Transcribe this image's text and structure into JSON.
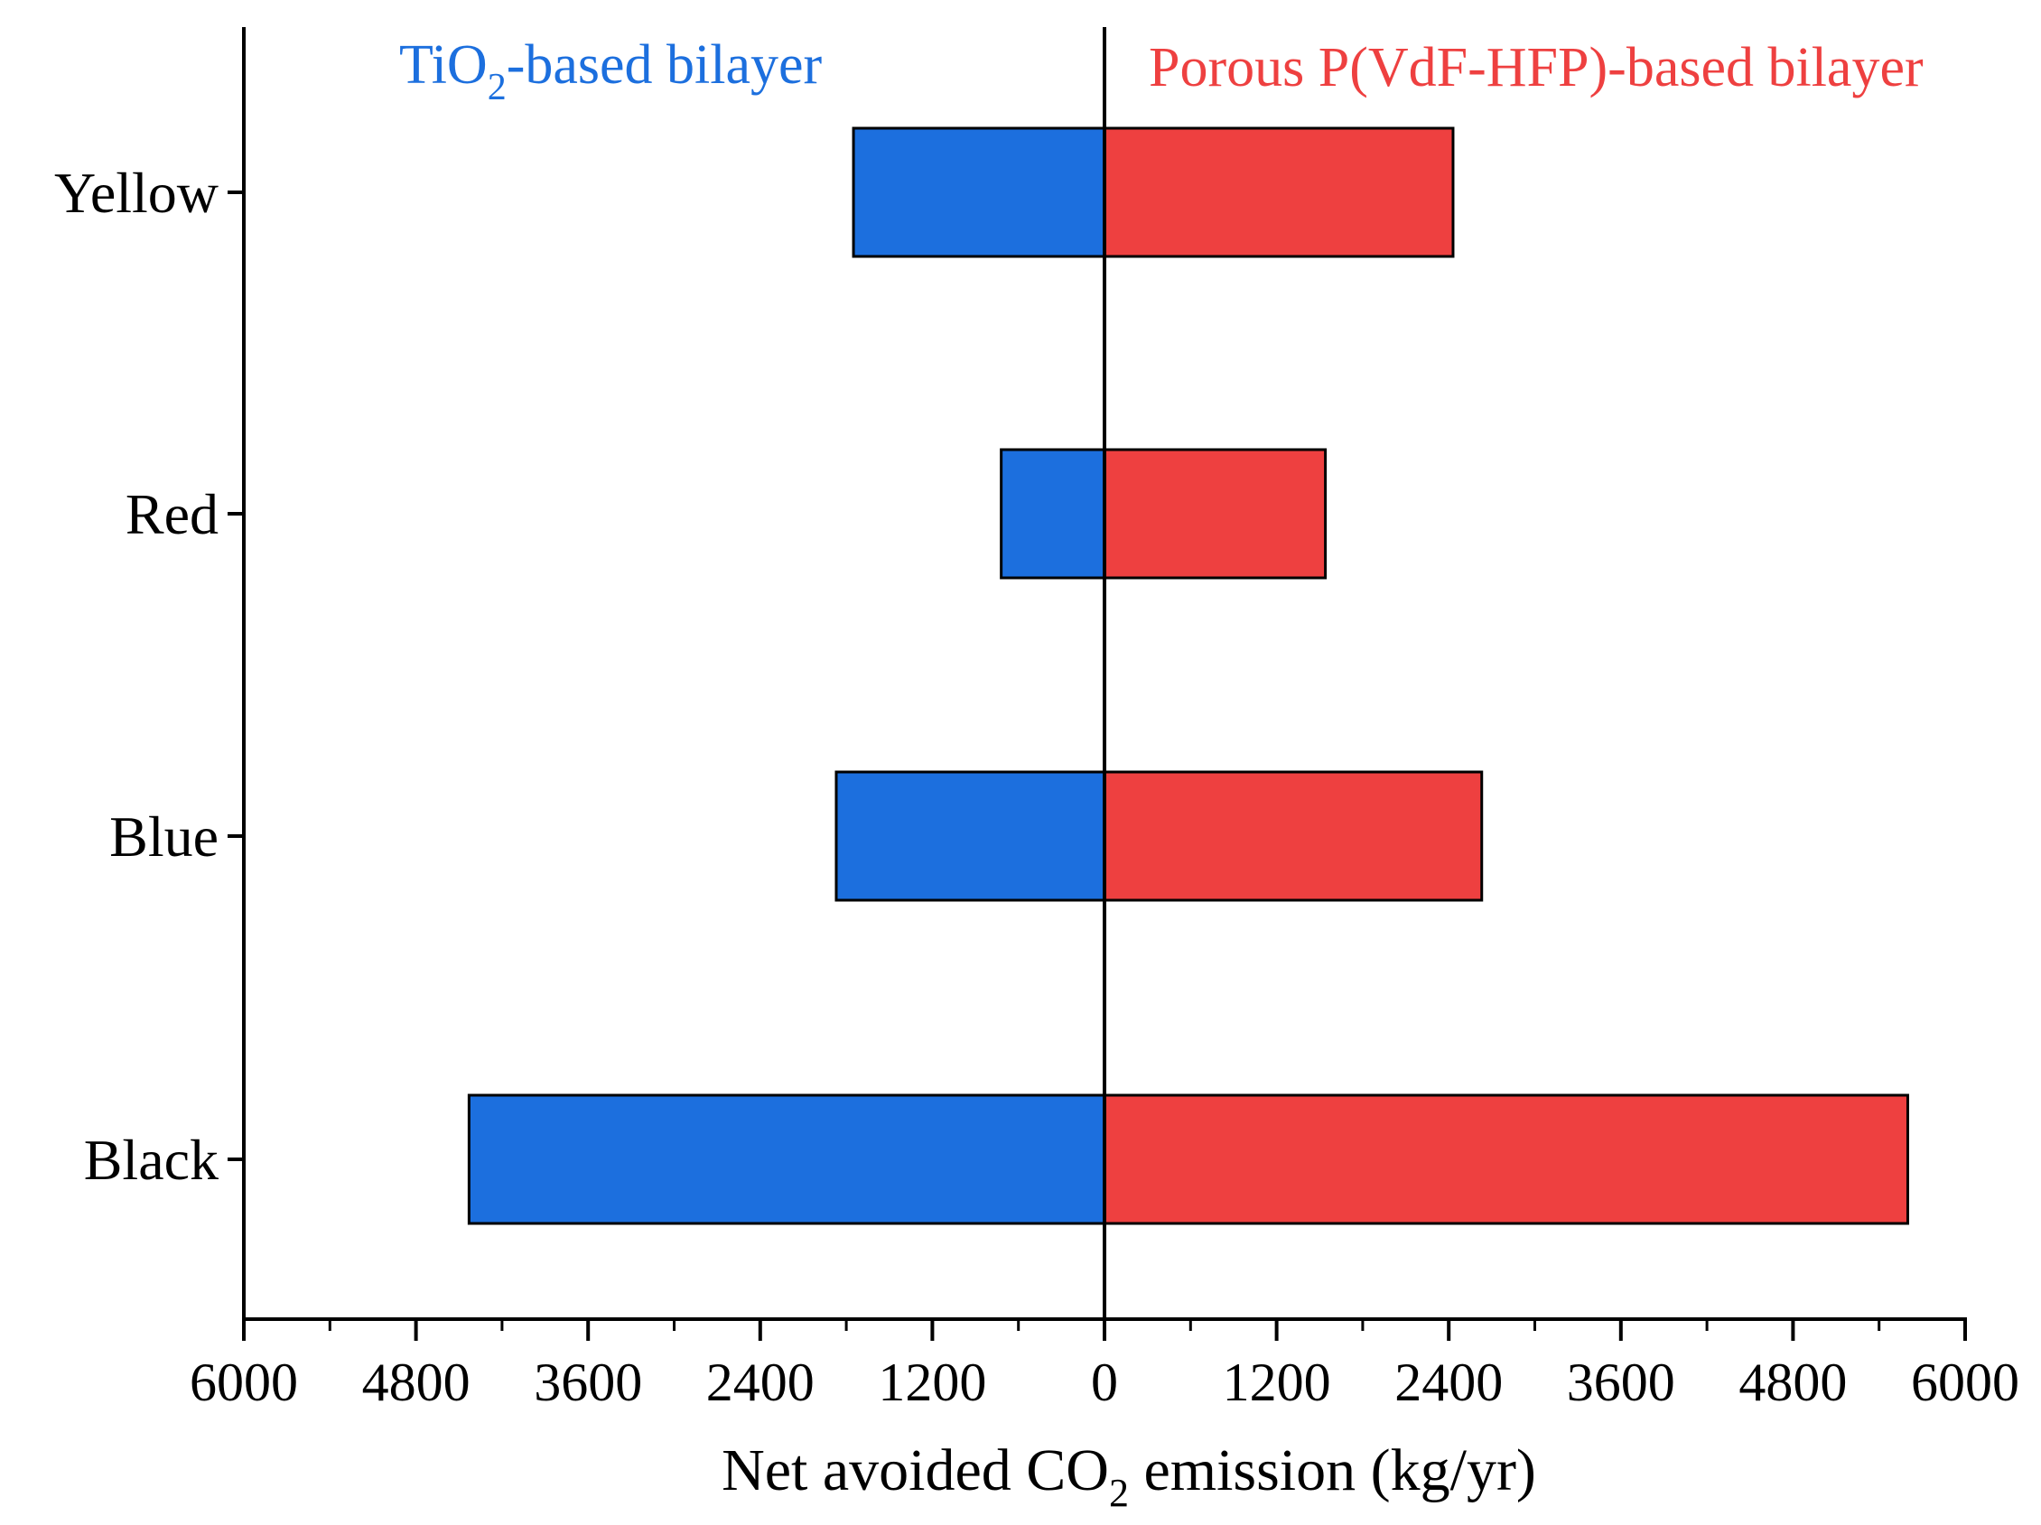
{
  "chart_data": {
    "type": "bar",
    "orientation": "horizontal-diverging",
    "categories": [
      "Yellow",
      "Red",
      "Blue",
      "Black"
    ],
    "series": [
      {
        "name": "TiO2-based bilayer",
        "label_main": "TiO",
        "label_sub": "2",
        "label_rest": "-based bilayer",
        "side": "left",
        "color": "#1c6fde",
        "values": [
          1750,
          720,
          1870,
          4430
        ]
      },
      {
        "name": "Porous P(VdF-HFP)-based bilayer",
        "label_main": "Porous P(VdF-HFP)-based bilayer",
        "side": "right",
        "color": "#ee4040",
        "values": [
          2430,
          1540,
          2630,
          5600
        ]
      }
    ],
    "x_ticks": [
      {
        "value": -6000,
        "label": "6000"
      },
      {
        "value": -4800,
        "label": "4800"
      },
      {
        "value": -3600,
        "label": "3600"
      },
      {
        "value": -2400,
        "label": "2400"
      },
      {
        "value": -1200,
        "label": "1200"
      },
      {
        "value": 0,
        "label": "0"
      },
      {
        "value": 1200,
        "label": "1200"
      },
      {
        "value": 2400,
        "label": "2400"
      },
      {
        "value": 3600,
        "label": "3600"
      },
      {
        "value": 4800,
        "label": "4800"
      },
      {
        "value": 6000,
        "label": "6000"
      }
    ],
    "xlim": [
      -6000,
      6000
    ],
    "xlabel": {
      "pre": "Net avoided CO",
      "sub": "2",
      "post": " emission (kg/yr)"
    },
    "ylabel": "",
    "grid": false
  }
}
